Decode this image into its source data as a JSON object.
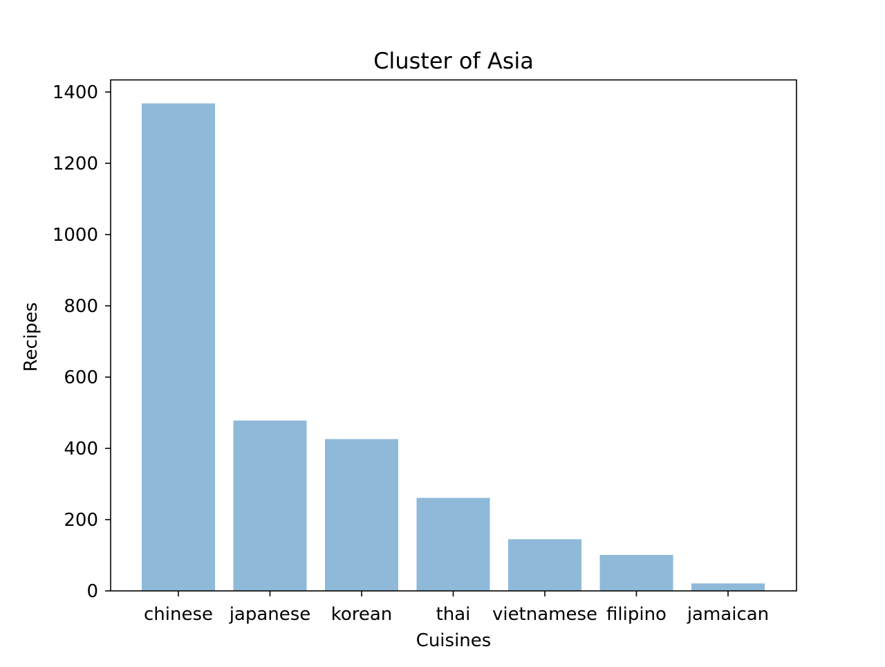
{
  "chart_data": {
    "type": "bar",
    "title": "Cluster of Asia",
    "xlabel": "Cuisines",
    "ylabel": "Recipes",
    "categories": [
      "chinese",
      "japanese",
      "korean",
      "thai",
      "vietnamese",
      "filipino",
      "jamaican"
    ],
    "values": [
      1368,
      478,
      426,
      261,
      145,
      101,
      21
    ],
    "ylim": [
      0,
      1400
    ],
    "yticks": [
      0,
      200,
      400,
      600,
      800,
      1000,
      1200,
      1400
    ],
    "grid": false,
    "bar_color": "#8fb9d9"
  }
}
